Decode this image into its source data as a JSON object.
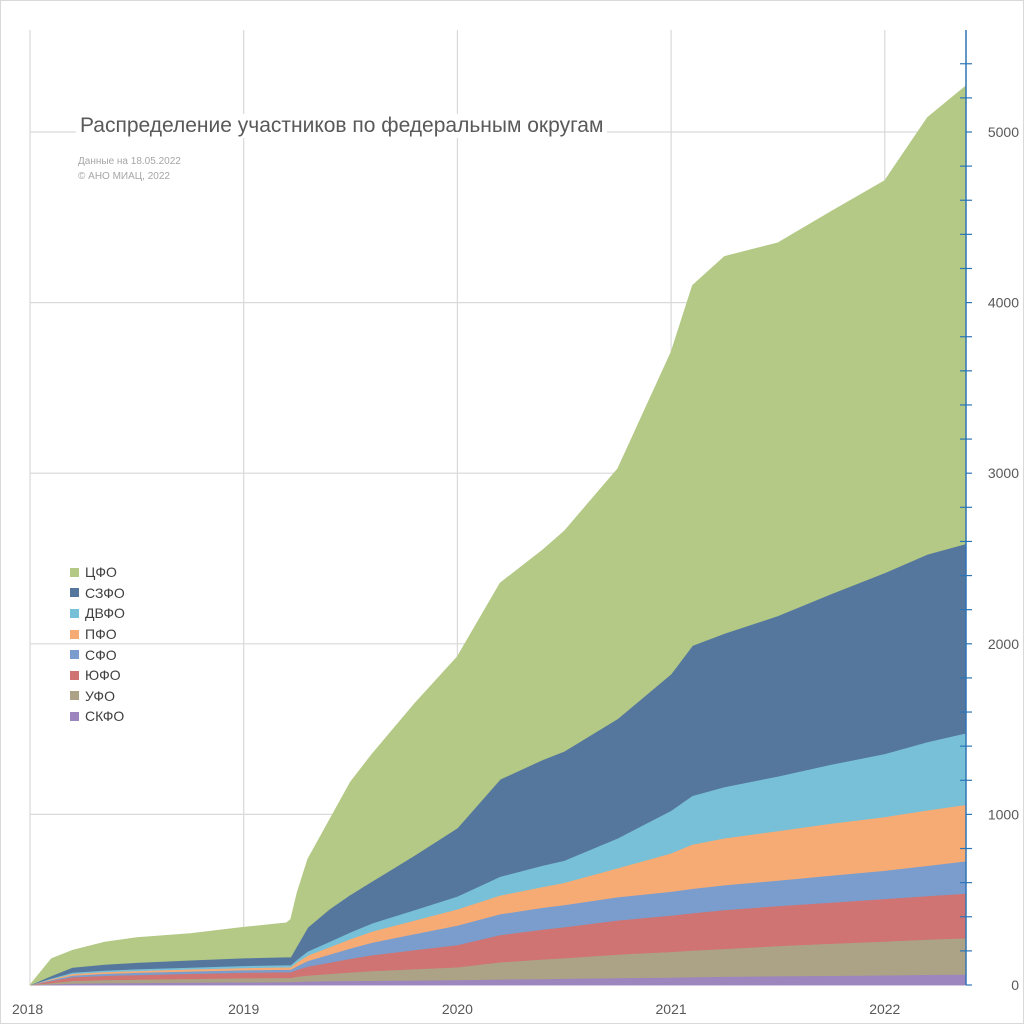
{
  "title": "Распределение участников по федеральным округам",
  "notes": [
    "Данные на 18.05.2022",
    "© АНО МИАЦ, 2022"
  ],
  "chart_data": {
    "type": "area",
    "stacked": true,
    "x": [
      2018.0,
      2018.1,
      2018.2,
      2018.35,
      2018.5,
      2018.75,
      2019.0,
      2019.2,
      2019.22,
      2019.25,
      2019.3,
      2019.4,
      2019.5,
      2019.6,
      2019.8,
      2020.0,
      2020.2,
      2020.4,
      2020.5,
      2020.75,
      2021.0,
      2021.1,
      2021.25,
      2021.5,
      2021.75,
      2022.0,
      2022.2,
      2022.38
    ],
    "x_ticks": [
      "2018",
      "2019",
      "2020",
      "2021",
      "2022"
    ],
    "y_ticks": [
      "0",
      "1000",
      "2000",
      "3000",
      "4000",
      "5000"
    ],
    "ylim": [
      0,
      5450
    ],
    "xlim": [
      2018.0,
      2022.38
    ],
    "axis_position": "right",
    "grid": true,
    "legend_position": "left",
    "series": [
      {
        "name": "СКФО",
        "color": "#9d85bd",
        "values": [
          0,
          5,
          10,
          12,
          13,
          15,
          17,
          18,
          18,
          20,
          22,
          24,
          25,
          26,
          28,
          30,
          34,
          36,
          38,
          42,
          45,
          47,
          50,
          53,
          55,
          58,
          61,
          63
        ]
      },
      {
        "name": "УФО",
        "color": "#aca386",
        "values": [
          0,
          8,
          15,
          18,
          20,
          22,
          24,
          25,
          25,
          30,
          35,
          42,
          50,
          57,
          66,
          75,
          100,
          115,
          120,
          138,
          150,
          156,
          163,
          176,
          188,
          198,
          206,
          212
        ]
      },
      {
        "name": "ЮФО",
        "color": "#cf7472",
        "values": [
          0,
          12,
          22,
          25,
          27,
          30,
          32,
          33,
          33,
          40,
          52,
          66,
          80,
          93,
          112,
          130,
          160,
          175,
          182,
          200,
          213,
          219,
          227,
          235,
          242,
          250,
          256,
          262
        ]
      },
      {
        "name": "СФО",
        "color": "#7b9dcd",
        "values": [
          0,
          5,
          10,
          12,
          13,
          14,
          15,
          15,
          15,
          22,
          33,
          47,
          60,
          73,
          94,
          115,
          122,
          128,
          130,
          136,
          140,
          143,
          146,
          150,
          158,
          165,
          177,
          190
        ]
      },
      {
        "name": "ПФО",
        "color": "#f6ab74",
        "values": [
          0,
          5,
          9,
          10,
          11,
          12,
          13,
          14,
          14,
          22,
          32,
          43,
          55,
          65,
          80,
          95,
          110,
          122,
          130,
          170,
          225,
          260,
          275,
          290,
          305,
          315,
          325,
          330
        ]
      },
      {
        "name": "ДВФО",
        "color": "#78c0d7",
        "values": [
          0,
          4,
          8,
          9,
          10,
          11,
          12,
          12,
          12,
          16,
          24,
          32,
          40,
          48,
          60,
          75,
          110,
          125,
          130,
          175,
          250,
          285,
          300,
          320,
          345,
          370,
          400,
          420
        ]
      },
      {
        "name": "СЗФО",
        "color": "#56779d",
        "values": [
          0,
          15,
          30,
          35,
          38,
          42,
          45,
          47,
          47,
          80,
          140,
          190,
          220,
          245,
          320,
          400,
          570,
          620,
          640,
          700,
          800,
          880,
          900,
          940,
          1000,
          1060,
          1100,
          1110
        ]
      },
      {
        "name": "ЦФО",
        "color": "#b3c985",
        "values": [
          0,
          100,
          100,
          130,
          145,
          155,
          180,
          200,
          220,
          310,
          400,
          520,
          660,
          745,
          890,
          1005,
          1150,
          1230,
          1290,
          1465,
          1887,
          2110,
          2209,
          2186,
          2242,
          2299,
          2560,
          2684
        ]
      }
    ]
  },
  "legend_order": [
    "ЦФО",
    "СЗФО",
    "ДВФО",
    "ПФО",
    "СФО",
    "ЮФО",
    "УФО",
    "СКФО"
  ]
}
